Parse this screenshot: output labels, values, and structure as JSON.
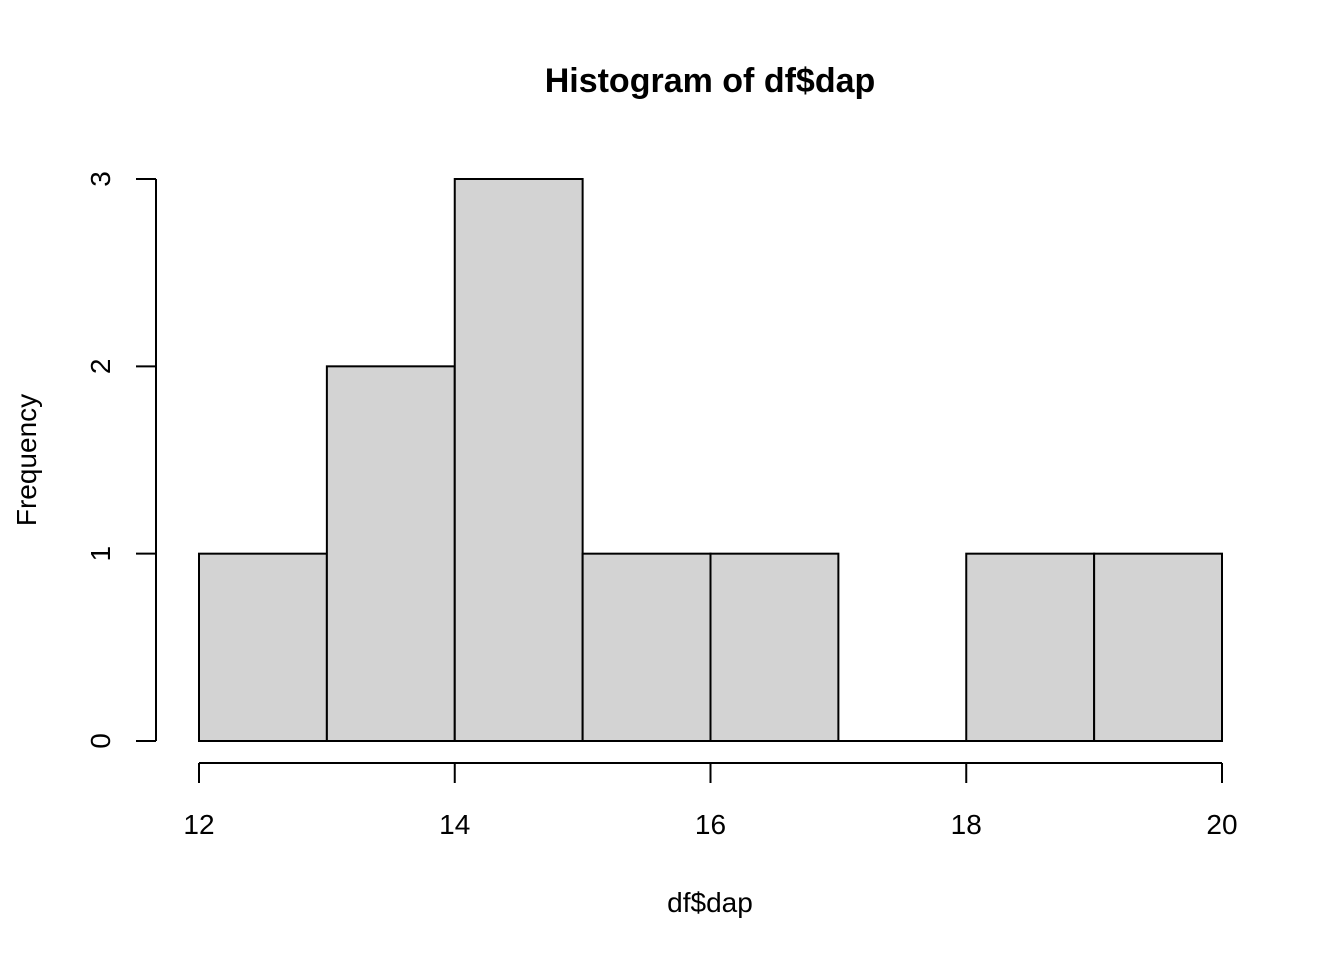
{
  "chart_data": {
    "type": "bar",
    "title": "Histogram of df$dap",
    "xlabel": "df$dap",
    "ylabel": "Frequency",
    "bins": [
      {
        "from": 12,
        "to": 13,
        "count": 1
      },
      {
        "from": 13,
        "to": 14,
        "count": 2
      },
      {
        "from": 14,
        "to": 15,
        "count": 3
      },
      {
        "from": 15,
        "to": 16,
        "count": 1
      },
      {
        "from": 16,
        "to": 17,
        "count": 1
      },
      {
        "from": 17,
        "to": 18,
        "count": 0
      },
      {
        "from": 18,
        "to": 19,
        "count": 1
      },
      {
        "from": 19,
        "to": 20,
        "count": 1
      }
    ],
    "xlim": [
      12,
      20
    ],
    "ylim": [
      0,
      3
    ],
    "x_ticks": [
      "12",
      "14",
      "16",
      "18",
      "20"
    ],
    "y_ticks": [
      "0",
      "1",
      "2",
      "3"
    ],
    "bar_fill": "#d3d3d3",
    "bar_stroke": "#000000",
    "grid": false,
    "legend": "none"
  }
}
